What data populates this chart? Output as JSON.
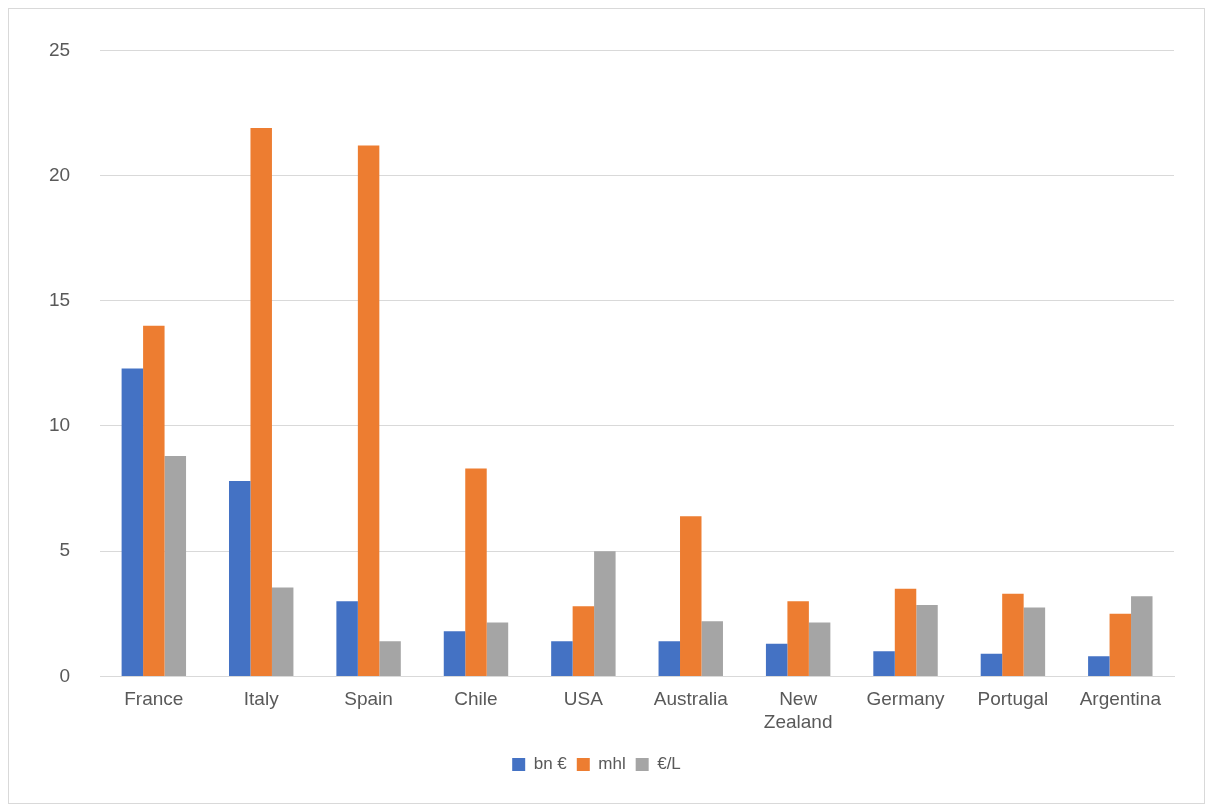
{
  "chart_data": {
    "type": "bar",
    "categories": [
      "France",
      "Italy",
      "Spain",
      "Chile",
      "USA",
      "Australia",
      "New Zealand",
      "Germany",
      "Portugal",
      "Argentina"
    ],
    "series": [
      {
        "name": "bn €",
        "color": "#4472c4",
        "values": [
          12.3,
          7.8,
          3.0,
          1.8,
          1.4,
          1.4,
          1.3,
          1.0,
          0.9,
          0.8
        ]
      },
      {
        "name": "mhl",
        "color": "#ed7d31",
        "values": [
          14.0,
          21.9,
          21.2,
          8.3,
          2.8,
          6.4,
          3.0,
          3.5,
          3.3,
          2.5
        ]
      },
      {
        "name": "€/L",
        "color": "#a5a5a5",
        "values": [
          8.8,
          3.55,
          1.4,
          2.15,
          5.0,
          2.2,
          2.15,
          2.85,
          2.75,
          3.2
        ]
      }
    ],
    "ylim": [
      0,
      25
    ],
    "yticks": [
      0,
      5,
      10,
      15,
      20,
      25
    ],
    "grid": "y",
    "legend": "bottom"
  }
}
